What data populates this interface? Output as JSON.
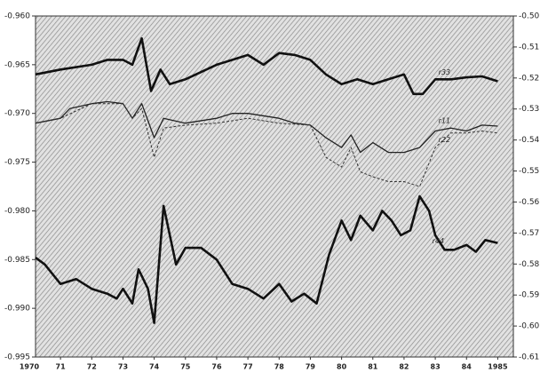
{
  "chart_data": {
    "type": "line",
    "xlim": [
      1970.2,
      1985.5
    ],
    "xticks": [
      1970,
      {
        "value": 1971,
        "label": "71"
      },
      {
        "value": 1972,
        "label": "72"
      },
      {
        "value": 1973,
        "label": "73"
      },
      {
        "value": 1974,
        "label": "74"
      },
      {
        "value": 1975,
        "label": "75"
      },
      {
        "value": 1976,
        "label": "76"
      },
      {
        "value": 1977,
        "label": "77"
      },
      {
        "value": 1978,
        "label": "78"
      },
      {
        "value": 1979,
        "label": "79"
      },
      {
        "value": 1980,
        "label": "80"
      },
      {
        "value": 1981,
        "label": "81"
      },
      {
        "value": 1982,
        "label": "82"
      },
      {
        "value": 1983,
        "label": "83"
      },
      {
        "value": 1984,
        "label": "84"
      },
      1985
    ],
    "ylim": [
      -0.995,
      -0.96
    ],
    "yticks": [
      {
        "value": -0.96,
        "label": "-0.960"
      },
      -0.965,
      {
        "value": -0.97,
        "label": "-0.970"
      },
      -0.975,
      {
        "value": -0.98,
        "label": "-0.980"
      },
      -0.985,
      {
        "value": -0.99,
        "label": "-0.990"
      },
      -0.995
    ],
    "y2lim": [
      -0.61,
      -0.5
    ],
    "y2ticks": [
      {
        "value": -0.5,
        "label": "-0.50"
      },
      -0.51,
      -0.52,
      -0.53,
      -0.54,
      -0.55,
      -0.56,
      -0.57,
      -0.58,
      -0.59,
      {
        "value": -0.6,
        "label": "-0.60"
      },
      -0.61
    ],
    "series": [
      {
        "name": "r33",
        "color": "#111",
        "style": "thick",
        "x": [
          1970.2,
          1971,
          1972,
          1972.5,
          1973,
          1973.3,
          1973.6,
          1973.9,
          1974.2,
          1974.5,
          1975,
          1976,
          1977,
          1977.5,
          1978,
          1978.5,
          1979,
          1979.5,
          1980,
          1980.5,
          1981,
          1981.5,
          1982,
          1982.3,
          1982.6,
          1983,
          1983.5,
          1984,
          1984.5,
          1985
        ],
        "values": [
          -0.966,
          -0.9655,
          -0.965,
          -0.9645,
          -0.9645,
          -0.965,
          -0.9623,
          -0.9677,
          -0.9655,
          -0.967,
          -0.9665,
          -0.965,
          -0.964,
          -0.965,
          -0.9638,
          -0.964,
          -0.9645,
          -0.966,
          -0.967,
          -0.9665,
          -0.967,
          -0.9665,
          -0.966,
          -0.968,
          -0.968,
          -0.9665,
          -0.9665,
          -0.9663,
          -0.9662,
          -0.9667
        ]
      },
      {
        "name": "r11",
        "color": "#222",
        "style": "thin",
        "x": [
          1970.2,
          1971,
          1971.3,
          1972,
          1972.5,
          1973,
          1973.3,
          1973.6,
          1974,
          1974.3,
          1975,
          1976,
          1976.5,
          1977,
          1978,
          1978.5,
          1979,
          1979.5,
          1980,
          1980.3,
          1980.6,
          1981,
          1981.5,
          1982,
          1982.5,
          1983,
          1983.5,
          1984,
          1984.5,
          1985
        ],
        "values": [
          -0.971,
          -0.9705,
          -0.9695,
          -0.969,
          -0.9688,
          -0.969,
          -0.9705,
          -0.969,
          -0.9725,
          -0.9705,
          -0.971,
          -0.9705,
          -0.97,
          -0.97,
          -0.9705,
          -0.971,
          -0.9712,
          -0.9725,
          -0.9735,
          -0.9722,
          -0.974,
          -0.973,
          -0.974,
          -0.974,
          -0.9735,
          -0.9718,
          -0.9715,
          -0.9718,
          -0.9712,
          -0.9713
        ]
      },
      {
        "name": "r22",
        "color": "#333",
        "style": "dashed",
        "x": [
          1970.2,
          1971,
          1972,
          1973,
          1973.3,
          1973.6,
          1974,
          1974.3,
          1975,
          1976,
          1977,
          1978,
          1979,
          1979.5,
          1980,
          1980.3,
          1980.6,
          1981,
          1981.5,
          1982,
          1982.5,
          1983,
          1983.5,
          1984,
          1984.5,
          1985
        ],
        "values": [
          -0.971,
          -0.9705,
          -0.969,
          -0.969,
          -0.9705,
          -0.9695,
          -0.9745,
          -0.9715,
          -0.9712,
          -0.971,
          -0.9705,
          -0.971,
          -0.9712,
          -0.9745,
          -0.9755,
          -0.9735,
          -0.976,
          -0.9765,
          -0.977,
          -0.977,
          -0.9775,
          -0.9735,
          -0.972,
          -0.972,
          -0.9718,
          -0.972
        ]
      },
      {
        "name": "r44",
        "color": "#111",
        "style": "thick",
        "x": [
          1970.2,
          1970.5,
          1971,
          1971.5,
          1972,
          1972.5,
          1972.8,
          1973,
          1973.3,
          1973.5,
          1973.8,
          1974,
          1974.3,
          1974.7,
          1975,
          1975.5,
          1976,
          1976.5,
          1977,
          1977.5,
          1978,
          1978.4,
          1978.8,
          1979.2,
          1979.6,
          1980,
          1980.3,
          1980.6,
          1981,
          1981.3,
          1981.6,
          1981.9,
          1982.2,
          1982.5,
          1982.8,
          1983,
          1983.3,
          1983.6,
          1984,
          1984.3,
          1984.6,
          1985
        ],
        "values": [
          -0.9848,
          -0.9855,
          -0.9875,
          -0.987,
          -0.988,
          -0.9885,
          -0.989,
          -0.988,
          -0.9895,
          -0.986,
          -0.988,
          -0.9915,
          -0.9795,
          -0.9855,
          -0.9838,
          -0.9838,
          -0.985,
          -0.9875,
          -0.988,
          -0.989,
          -0.9875,
          -0.9893,
          -0.9885,
          -0.9895,
          -0.9845,
          -0.981,
          -0.983,
          -0.9805,
          -0.982,
          -0.98,
          -0.981,
          -0.9825,
          -0.982,
          -0.9785,
          -0.98,
          -0.9825,
          -0.984,
          -0.984,
          -0.9835,
          -0.9842,
          -0.983,
          -0.9833
        ]
      }
    ]
  }
}
